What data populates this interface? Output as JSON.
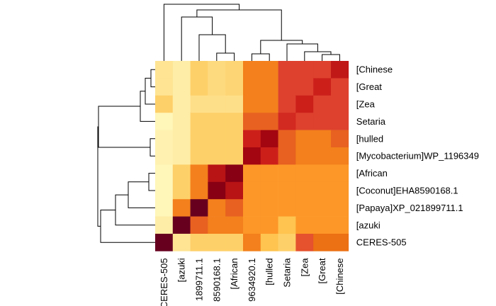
{
  "chart_data": {
    "type": "heatmap",
    "title": "",
    "xlabel": "",
    "ylabel": "",
    "row_labels": [
      "[Chinese",
      "[Great",
      "[Zea",
      "Setaria",
      "[hulled",
      "[Mycobacterium]WP_1196349",
      "[African",
      "[Coconut]EHA8590168.1",
      "[Papaya]XP_021899711.1",
      "[azuki",
      "CERES-505"
    ],
    "col_labels": [
      "CERES-505",
      "[azuki",
      "1899711.1",
      "8590168.1",
      "[African",
      "9634920.1",
      "[hulled",
      "Setaria",
      "[Zea",
      "[Great",
      "[Chinese"
    ],
    "values": [
      [
        0.12,
        0.08,
        0.2,
        0.16,
        0.18,
        0.45,
        0.45,
        0.65,
        0.65,
        0.65,
        0.78
      ],
      [
        0.12,
        0.08,
        0.2,
        0.16,
        0.18,
        0.45,
        0.45,
        0.65,
        0.65,
        0.75,
        0.65
      ],
      [
        0.2,
        0.08,
        0.14,
        0.14,
        0.14,
        0.45,
        0.45,
        0.65,
        0.75,
        0.65,
        0.65
      ],
      [
        0.04,
        0.08,
        0.2,
        0.2,
        0.2,
        0.55,
        0.55,
        0.72,
        0.65,
        0.65,
        0.65
      ],
      [
        0.06,
        0.08,
        0.2,
        0.2,
        0.2,
        0.75,
        0.85,
        0.55,
        0.45,
        0.45,
        0.55
      ],
      [
        0.06,
        0.08,
        0.2,
        0.2,
        0.2,
        0.85,
        0.75,
        0.55,
        0.45,
        0.45,
        0.45
      ],
      [
        0.04,
        0.2,
        0.45,
        0.8,
        0.92,
        0.38,
        0.38,
        0.38,
        0.38,
        0.38,
        0.38
      ],
      [
        0.04,
        0.2,
        0.45,
        0.92,
        0.8,
        0.38,
        0.38,
        0.38,
        0.38,
        0.38,
        0.38
      ],
      [
        0.04,
        0.45,
        1.0,
        0.45,
        0.55,
        0.38,
        0.38,
        0.38,
        0.38,
        0.38,
        0.38
      ],
      [
        0.08,
        1.0,
        0.55,
        0.45,
        0.45,
        0.38,
        0.38,
        0.25,
        0.38,
        0.38,
        0.38
      ],
      [
        1.0,
        0.12,
        0.2,
        0.2,
        0.2,
        0.45,
        0.25,
        0.2,
        0.6,
        0.5,
        0.5
      ]
    ],
    "color_scale": [
      "#ffffcc",
      "#fee391",
      "#fec44f",
      "#fe9929",
      "#ec7014",
      "#e34a33",
      "#cc1f1a",
      "#99000d",
      "#67001f"
    ],
    "legend": "none",
    "grid": false,
    "row_dendrogram": "left",
    "col_dendrogram": "top"
  }
}
